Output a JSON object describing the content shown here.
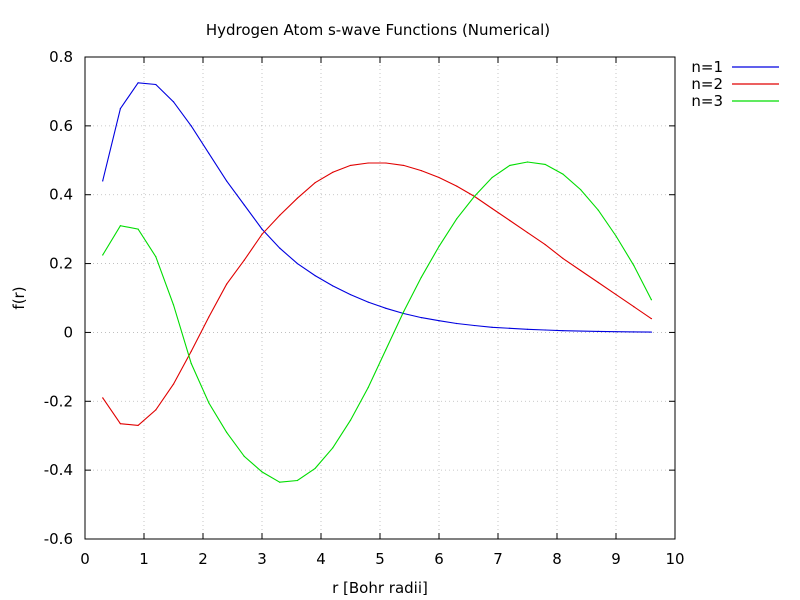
{
  "chart_data": {
    "type": "line",
    "title": "Hydrogen Atom s-wave Functions (Numerical)",
    "xlabel": "r [Bohr radii]",
    "ylabel": "f(r)",
    "xlim": [
      0,
      10
    ],
    "ylim": [
      -0.6,
      0.8
    ],
    "xticks": [
      "0",
      "1",
      "2",
      "3",
      "4",
      "5",
      "6",
      "7",
      "8",
      "9",
      "10"
    ],
    "yticks": [
      "-0.6",
      "-0.4",
      "-0.2",
      "0",
      "0.2",
      "0.4",
      "0.6",
      "0.8"
    ],
    "grid": true,
    "legend_position": "outside-top-right",
    "x": [
      0.3,
      0.6,
      0.9,
      1.2,
      1.5,
      1.8,
      2.1,
      2.4,
      2.7,
      3.0,
      3.3,
      3.6,
      3.9,
      4.2,
      4.5,
      4.8,
      5.1,
      5.4,
      5.7,
      6.0,
      6.3,
      6.6,
      6.9,
      7.2,
      7.5,
      7.8,
      8.1,
      8.4,
      8.7,
      9.0,
      9.3,
      9.6
    ],
    "series": [
      {
        "name": "n=1",
        "color": "#0000e0",
        "values": [
          0.44,
          0.65,
          0.725,
          0.72,
          0.67,
          0.6,
          0.52,
          0.44,
          0.37,
          0.3,
          0.245,
          0.2,
          0.165,
          0.135,
          0.11,
          0.088,
          0.07,
          0.055,
          0.043,
          0.034,
          0.026,
          0.02,
          0.015,
          0.012,
          0.009,
          0.007,
          0.005,
          0.004,
          0.003,
          0.002,
          0.0015,
          0.001
        ]
      },
      {
        "name": "n=2",
        "color": "#e00000",
        "values": [
          -0.19,
          -0.265,
          -0.27,
          -0.225,
          -0.15,
          -0.055,
          0.045,
          0.14,
          0.21,
          0.285,
          0.34,
          0.39,
          0.435,
          0.465,
          0.485,
          0.492,
          0.492,
          0.485,
          0.47,
          0.45,
          0.425,
          0.395,
          0.36,
          0.325,
          0.29,
          0.255,
          0.215,
          0.18,
          0.145,
          0.11,
          0.075,
          0.04
        ]
      },
      {
        "name": "n=3",
        "color": "#00dd00",
        "values": [
          0.225,
          0.31,
          0.3,
          0.22,
          0.08,
          -0.09,
          -0.205,
          -0.29,
          -0.36,
          -0.405,
          -0.435,
          -0.43,
          -0.395,
          -0.335,
          -0.255,
          -0.16,
          -0.05,
          0.06,
          0.16,
          0.25,
          0.33,
          0.395,
          0.45,
          0.485,
          0.495,
          0.488,
          0.46,
          0.415,
          0.355,
          0.28,
          0.195,
          0.095
        ]
      }
    ]
  }
}
